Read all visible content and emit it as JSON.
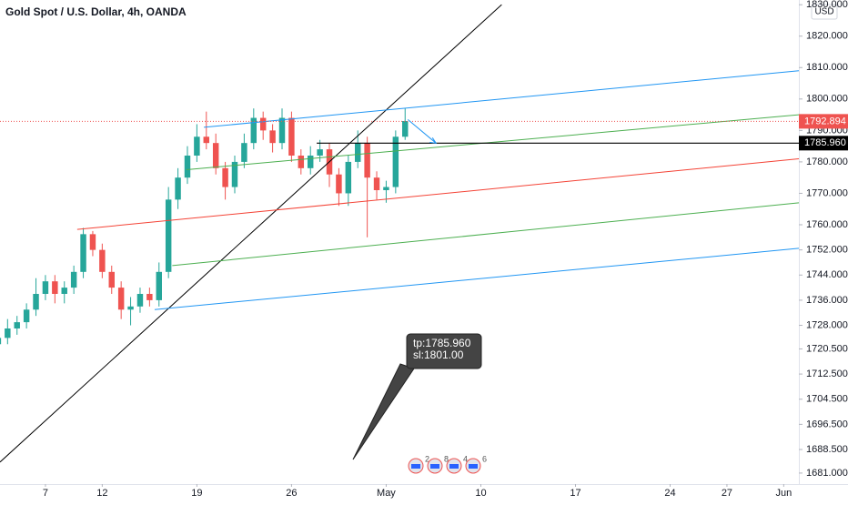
{
  "chart_data": {
    "type": "candlestick",
    "title": "Gold Spot / U.S. Dollar, 4h, OANDA",
    "currency": "USD",
    "x": [
      -2.5,
      -2,
      -1.5,
      -1,
      -0.5,
      0,
      0.5,
      1,
      1.5,
      2,
      2.5,
      3,
      3.5,
      4,
      4.5,
      5,
      5.5,
      6,
      6.5,
      7,
      7.5,
      8,
      8.5,
      9,
      9.5,
      10,
      10.5,
      11,
      11.5,
      12,
      12.5,
      13,
      13.5,
      14,
      14.5,
      15,
      15.5,
      16,
      16.5,
      17,
      17.5,
      18,
      18.5,
      19
    ],
    "open": [
      1722,
      1724,
      1727,
      1729,
      1733,
      1738,
      1742,
      1738,
      1740,
      1745,
      1757,
      1752,
      1745,
      1740,
      1733,
      1734,
      1738,
      1736,
      1745,
      1768,
      1775,
      1782,
      1788,
      1786,
      1778,
      1772,
      1780,
      1786,
      1794,
      1790,
      1786,
      1794,
      1782,
      1778,
      1782,
      1784,
      1776,
      1770,
      1780,
      1786,
      1775,
      1771,
      1772,
      1788
    ],
    "high": [
      1728,
      1730,
      1731,
      1735,
      1743,
      1744,
      1744,
      1742,
      1747,
      1759,
      1758,
      1754,
      1747,
      1742,
      1737,
      1740,
      1740,
      1748,
      1772,
      1778,
      1785,
      1792,
      1796,
      1789,
      1780,
      1782,
      1789,
      1797,
      1796,
      1792,
      1797,
      1796,
      1784,
      1785,
      1787,
      1786,
      1778,
      1782,
      1790,
      1788,
      1777,
      1774,
      1790,
      1797
    ],
    "low": [
      1718,
      1722,
      1725,
      1727,
      1731,
      1736,
      1735,
      1735,
      1738,
      1743,
      1750,
      1743,
      1738,
      1730,
      1728,
      1732,
      1734,
      1734,
      1743,
      1765,
      1773,
      1780,
      1784,
      1776,
      1768,
      1770,
      1778,
      1784,
      1787,
      1783,
      1784,
      1780,
      1776,
      1776,
      1780,
      1772,
      1766,
      1766,
      1778,
      1756,
      1768,
      1767,
      1770,
      1787
    ],
    "close": [
      1724,
      1727,
      1729,
      1733,
      1738,
      1742,
      1738,
      1740,
      1745,
      1757,
      1752,
      1745,
      1740,
      1733,
      1734,
      1738,
      1736,
      1745,
      1768,
      1775,
      1782,
      1788,
      1786,
      1778,
      1772,
      1780,
      1786,
      1794,
      1790,
      1786,
      1794,
      1782,
      1778,
      1782,
      1784,
      1776,
      1770,
      1780,
      1786,
      1775,
      1771,
      1772,
      1788,
      1793
    ],
    "up_color": "#26a69a",
    "down_color": "#ef5350",
    "xlim": [
      -2.4,
      39.8
    ],
    "xticks": [
      {
        "value": 0,
        "label": "7"
      },
      {
        "value": 3,
        "label": "12"
      },
      {
        "value": 8,
        "label": "19"
      },
      {
        "value": 13,
        "label": "26"
      },
      {
        "value": 18,
        "label": "May"
      },
      {
        "value": 23,
        "label": "10"
      },
      {
        "value": 28,
        "label": "17"
      },
      {
        "value": 33,
        "label": "24"
      },
      {
        "value": 36,
        "label": "27"
      },
      {
        "value": 39,
        "label": "Jun"
      }
    ],
    "ylim": [
      1677.5,
      1831.5
    ],
    "yticks": [
      {
        "value": 1830,
        "label": "1830.000"
      },
      {
        "value": 1820,
        "label": "1820.000"
      },
      {
        "value": 1810,
        "label": "1810.000"
      },
      {
        "value": 1800,
        "label": "1800.000"
      },
      {
        "value": 1790,
        "label": "1790.000"
      },
      {
        "value": 1780,
        "label": "1780.000"
      },
      {
        "value": 1770,
        "label": "1770.000"
      },
      {
        "value": 1760,
        "label": "1760.000"
      },
      {
        "value": 1752,
        "label": "1752.000"
      },
      {
        "value": 1744,
        "label": "1744.000"
      },
      {
        "value": 1736,
        "label": "1736.000"
      },
      {
        "value": 1728,
        "label": "1728.000"
      },
      {
        "value": 1720.5,
        "label": "1720.500"
      },
      {
        "value": 1712.5,
        "label": "1712.500"
      },
      {
        "value": 1704.5,
        "label": "1704.500"
      },
      {
        "value": 1696.5,
        "label": "1696.500"
      },
      {
        "value": 1688.5,
        "label": "1688.500"
      },
      {
        "value": 1681,
        "label": "1681.000"
      }
    ],
    "lines": [
      {
        "x": [
          -2.4,
          24.1
        ],
        "y": [
          1684.5,
          1830
        ],
        "color": "#000000"
      },
      {
        "x": [
          8.37,
          39.8
        ],
        "y": [
          1791,
          1809
        ],
        "color": "#2196f3"
      },
      {
        "x": [
          7.45,
          39.8
        ],
        "y": [
          1777.5,
          1795
        ],
        "color": "#4caf50"
      },
      {
        "x": [
          1.68,
          39.8
        ],
        "y": [
          1758.5,
          1781
        ],
        "color": "#f44336"
      },
      {
        "x": [
          6.7,
          39.8
        ],
        "y": [
          1747,
          1767
        ],
        "color": "#4caf50"
      },
      {
        "x": [
          5.77,
          39.8
        ],
        "y": [
          1733,
          1752.5
        ],
        "color": "#2196f3"
      }
    ],
    "current_price": {
      "value": 1792.894,
      "label": "1792.894",
      "color": "#ef5350"
    },
    "target": {
      "value": 1785.96,
      "label": "1785.960",
      "start": 14.33,
      "color": "#000000"
    },
    "callout": [
      "tp:1785.960",
      "sl:1801.00"
    ],
    "events": [
      "2",
      "8",
      "4",
      "6"
    ]
  }
}
